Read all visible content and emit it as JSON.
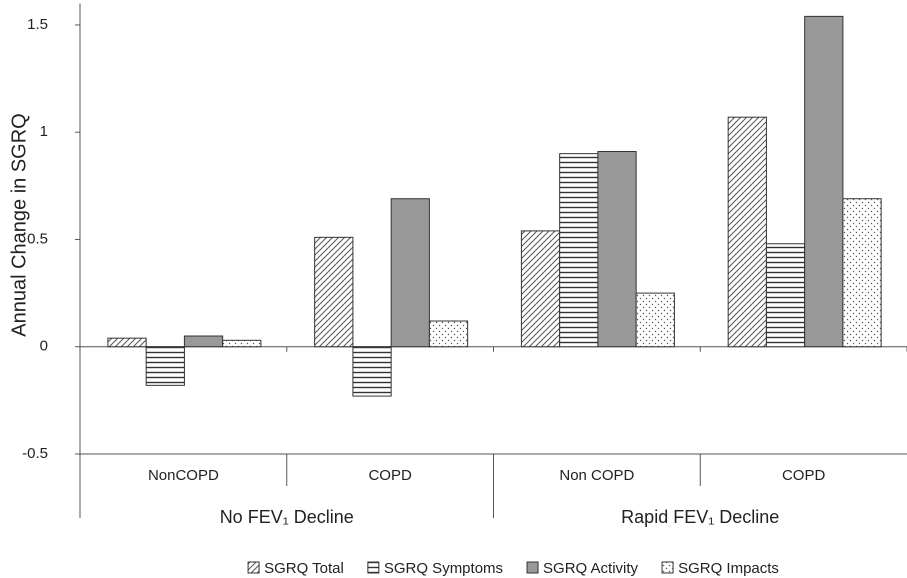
{
  "chart_data": {
    "type": "bar",
    "y_label": "Annual Change in SGRQ",
    "categories": [
      "NonCOPD",
      "COPD",
      "Non COPD",
      "COPD"
    ],
    "groups": [
      "No FEV₁ Decline",
      "Rapid FEV₁ Decline"
    ],
    "series": [
      {
        "name": "SGRQ Total",
        "color": "#555555",
        "pattern": "diagonal",
        "values": [
          0.04,
          0.51,
          0.54,
          1.07
        ]
      },
      {
        "name": "SGRQ Symptoms",
        "color": "#333333",
        "pattern": "horizontal",
        "values": [
          -0.18,
          -0.23,
          0.9,
          0.48
        ]
      },
      {
        "name": "SGRQ Activity",
        "color": "#999999",
        "pattern": "solid",
        "values": [
          0.05,
          0.69,
          0.91,
          1.54
        ]
      },
      {
        "name": "SGRQ Impacts",
        "color": "#555555",
        "pattern": "dots",
        "values": [
          0.03,
          0.12,
          0.25,
          0.69
        ]
      }
    ],
    "ylim": [
      -0.5,
      1.6
    ],
    "yticks": [
      -0.5,
      0,
      0.5,
      1,
      1.5
    ],
    "legend": "bottom"
  }
}
